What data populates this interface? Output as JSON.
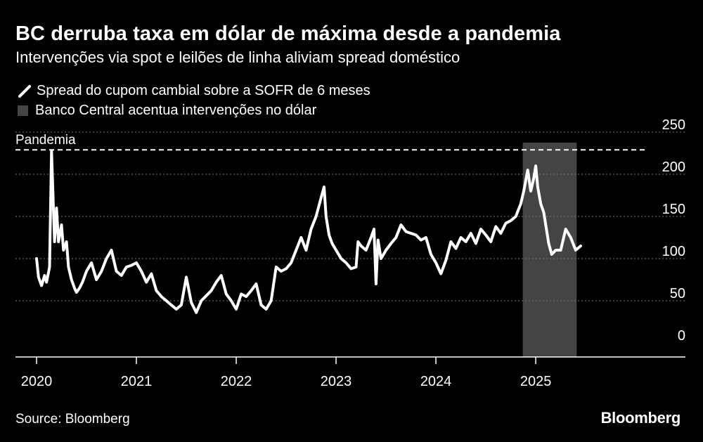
{
  "title": "BC derruba taxa em dólar de máxima desde a pandemia",
  "subtitle": "Intervenções via spot e leilões de linha aliviam spread doméstico",
  "legend": {
    "line_label": "Spread do cupom cambial sobre a SOFR de 6 meses",
    "band_label": "Banco Central acentua intervenções no dólar"
  },
  "source": "Source: Bloomberg",
  "brand": "Bloomberg",
  "colors": {
    "background": "#000000",
    "line": "#ffffff",
    "band": "#444444",
    "grid": "#7a7a7a"
  },
  "chart_data": {
    "type": "line",
    "title": "BC derruba taxa em dólar de máxima desde a pandemia",
    "subtitle": "Intervenções via spot e leilões de linha aliviam spread doméstico",
    "x_ticks": [
      "2020",
      "2021",
      "2022",
      "2023",
      "2024",
      "2025"
    ],
    "y_ticks": [
      0,
      50,
      100,
      150,
      200,
      250
    ],
    "xlim": [
      2020.0,
      2025.95
    ],
    "ylim": [
      -20,
      250
    ],
    "grid": "horizontal dotted",
    "y_axis_side": "right",
    "annotation": {
      "label": "Pandemia",
      "y": 229
    },
    "band": {
      "label": "Banco Central acentua intervenções no dólar",
      "x_start": 2024.87,
      "x_end": 2025.41
    },
    "series": [
      {
        "name": "Spread do cupom cambial sobre a SOFR de 6 meses",
        "x": [
          2020.0,
          2020.02,
          2020.05,
          2020.08,
          2020.1,
          2020.13,
          2020.15,
          2020.18,
          2020.2,
          2020.22,
          2020.25,
          2020.27,
          2020.3,
          2020.32,
          2020.35,
          2020.38,
          2020.4,
          2020.43,
          2020.46,
          2020.5,
          2020.55,
          2020.6,
          2020.65,
          2020.7,
          2020.75,
          2020.8,
          2020.85,
          2020.9,
          2020.95,
          2021.0,
          2021.05,
          2021.1,
          2021.15,
          2021.2,
          2021.25,
          2021.3,
          2021.35,
          2021.4,
          2021.45,
          2021.5,
          2021.55,
          2021.6,
          2021.65,
          2021.7,
          2021.75,
          2021.8,
          2021.85,
          2021.9,
          2021.95,
          2022.0,
          2022.05,
          2022.1,
          2022.15,
          2022.2,
          2022.25,
          2022.3,
          2022.35,
          2022.4,
          2022.45,
          2022.5,
          2022.55,
          2022.6,
          2022.65,
          2022.7,
          2022.75,
          2022.8,
          2022.85,
          2022.88,
          2022.9,
          2022.93,
          2022.96,
          2023.0,
          2023.05,
          2023.1,
          2023.15,
          2023.2,
          2023.22,
          2023.25,
          2023.3,
          2023.35,
          2023.38,
          2023.4,
          2023.42,
          2023.45,
          2023.5,
          2023.55,
          2023.6,
          2023.65,
          2023.7,
          2023.75,
          2023.8,
          2023.85,
          2023.9,
          2023.95,
          2024.0,
          2024.05,
          2024.1,
          2024.15,
          2024.2,
          2024.25,
          2024.3,
          2024.35,
          2024.4,
          2024.45,
          2024.5,
          2024.55,
          2024.6,
          2024.65,
          2024.7,
          2024.75,
          2024.8,
          2024.85,
          2024.88,
          2024.92,
          2024.95,
          2024.98,
          2025.0,
          2025.02,
          2025.05,
          2025.08,
          2025.1,
          2025.13,
          2025.16,
          2025.2,
          2025.25,
          2025.3,
          2025.35,
          2025.4,
          2025.45
        ],
        "y": [
          100,
          78,
          68,
          80,
          72,
          90,
          228,
          120,
          160,
          120,
          140,
          110,
          120,
          90,
          75,
          65,
          60,
          65,
          72,
          85,
          95,
          75,
          85,
          100,
          110,
          85,
          80,
          90,
          92,
          95,
          85,
          72,
          82,
          62,
          55,
          50,
          45,
          40,
          45,
          78,
          48,
          36,
          50,
          56,
          62,
          72,
          80,
          58,
          50,
          40,
          58,
          55,
          62,
          70,
          45,
          40,
          50,
          90,
          85,
          88,
          95,
          110,
          125,
          110,
          135,
          150,
          172,
          185,
          150,
          128,
          118,
          110,
          100,
          95,
          88,
          90,
          120,
          115,
          110,
          125,
          135,
          70,
          122,
          100,
          110,
          118,
          125,
          140,
          132,
          130,
          128,
          122,
          125,
          105,
          95,
          82,
          98,
          120,
          112,
          125,
          120,
          130,
          118,
          135,
          128,
          120,
          138,
          130,
          142,
          145,
          150,
          165,
          180,
          205,
          180,
          195,
          210,
          185,
          165,
          155,
          140,
          118,
          105,
          110,
          110,
          135,
          125,
          110,
          115
        ]
      }
    ]
  }
}
